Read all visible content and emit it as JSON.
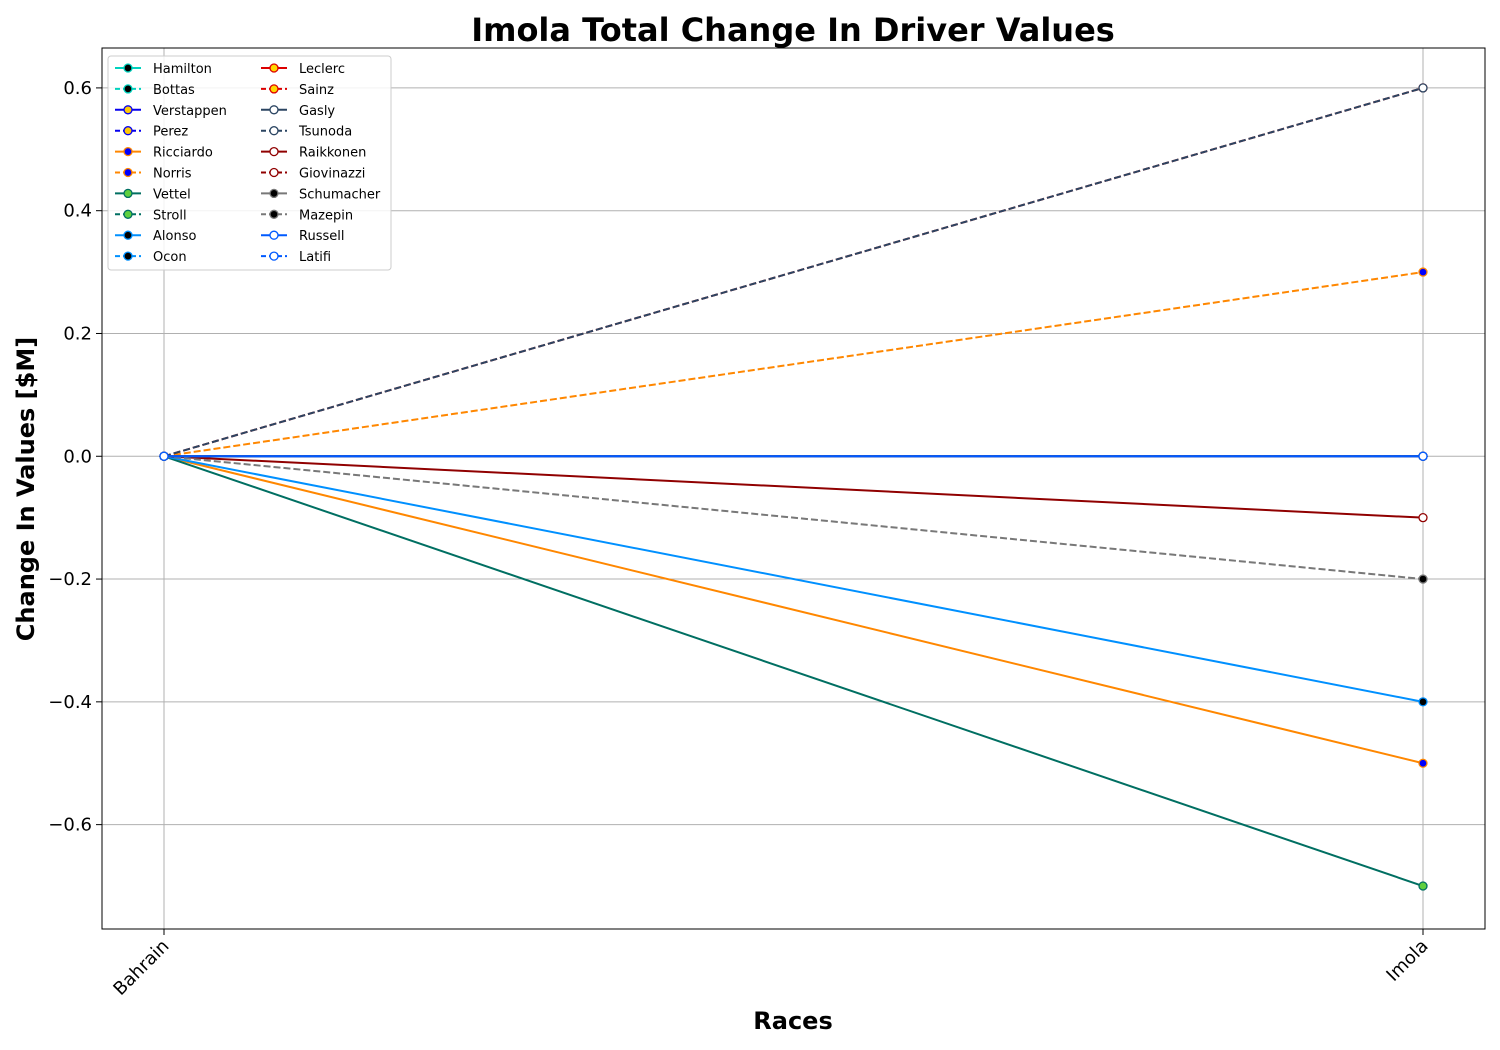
{
  "chart_data": {
    "type": "line",
    "title": "Imola Total Change In Driver Values",
    "xlabel": "Races",
    "ylabel": "Change In Values [$M]",
    "categories": [
      "Bahrain",
      "Imola"
    ],
    "ylim": [
      -0.77,
      0.665
    ],
    "yticks": [
      -0.6,
      -0.4,
      -0.2,
      0.0,
      0.2,
      0.4,
      0.6
    ],
    "ytick_labels": [
      "−0.6",
      "−0.4",
      "−0.2",
      "0.0",
      "0.2",
      "0.4",
      "0.6"
    ],
    "grid": true,
    "legend_position": "top-left",
    "legend_columns": 2,
    "series": [
      {
        "name": "Hamilton",
        "values": [
          0,
          0
        ],
        "color": "#00D2BE",
        "marker_fill": "#000000",
        "dashed": false
      },
      {
        "name": "Bottas",
        "values": [
          0,
          0
        ],
        "color": "#00D2BE",
        "marker_fill": "#000000",
        "dashed": true
      },
      {
        "name": "Verstappen",
        "values": [
          0,
          0
        ],
        "color": "#0600EF",
        "marker_fill": "#FFC906",
        "dashed": false
      },
      {
        "name": "Perez",
        "values": [
          0,
          0
        ],
        "color": "#0600EF",
        "marker_fill": "#FFC906",
        "dashed": true
      },
      {
        "name": "Ricciardo",
        "values": [
          0,
          -0.5
        ],
        "color": "#FF8700",
        "marker_fill": "#0000FF",
        "dashed": false
      },
      {
        "name": "Norris",
        "values": [
          0,
          0.3
        ],
        "color": "#FF8700",
        "marker_fill": "#0000FF",
        "dashed": true
      },
      {
        "name": "Vettel",
        "values": [
          0,
          -0.7
        ],
        "color": "#006F62",
        "marker_fill": "#5FCF3F",
        "dashed": false
      },
      {
        "name": "Stroll",
        "values": [
          0,
          0
        ],
        "color": "#006F62",
        "marker_fill": "#5FCF3F",
        "dashed": true
      },
      {
        "name": "Alonso",
        "values": [
          0,
          -0.4
        ],
        "color": "#0090FF",
        "marker_fill": "#000000",
        "dashed": false
      },
      {
        "name": "Ocon",
        "values": [
          0,
          0
        ],
        "color": "#0090FF",
        "marker_fill": "#000000",
        "dashed": true
      },
      {
        "name": "Leclerc",
        "values": [
          0,
          0
        ],
        "color": "#DC0000",
        "marker_fill": "#FFD700",
        "dashed": false
      },
      {
        "name": "Sainz",
        "values": [
          0,
          0.6
        ],
        "color": "#DC0000",
        "marker_fill": "#FFD700",
        "dashed": true
      },
      {
        "name": "Gasly",
        "values": [
          0,
          0
        ],
        "color": "#2B4562",
        "marker_fill": "#FFFFFF",
        "dashed": false
      },
      {
        "name": "Tsunoda",
        "values": [
          0,
          0.6
        ],
        "color": "#2B4562",
        "marker_fill": "#FFFFFF",
        "dashed": true
      },
      {
        "name": "Raikkonen",
        "values": [
          0,
          -0.1
        ],
        "color": "#900000",
        "marker_fill": "#FFFFFF",
        "dashed": false
      },
      {
        "name": "Giovinazzi",
        "values": [
          0,
          0
        ],
        "color": "#900000",
        "marker_fill": "#FFFFFF",
        "dashed": true
      },
      {
        "name": "Schumacher",
        "values": [
          0,
          0
        ],
        "color": "#787878",
        "marker_fill": "#000000",
        "dashed": false
      },
      {
        "name": "Mazepin",
        "values": [
          0,
          -0.2
        ],
        "color": "#787878",
        "marker_fill": "#000000",
        "dashed": true
      },
      {
        "name": "Russell",
        "values": [
          0,
          0
        ],
        "color": "#005AFF",
        "marker_fill": "#FFFFFF",
        "dashed": false
      },
      {
        "name": "Latifi",
        "values": [
          0,
          0
        ],
        "color": "#005AFF",
        "marker_fill": "#FFFFFF",
        "dashed": true
      }
    ]
  }
}
